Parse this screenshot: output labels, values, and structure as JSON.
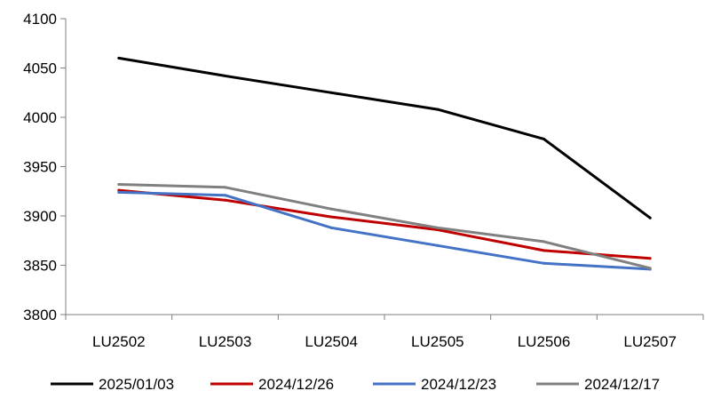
{
  "chart_data": {
    "type": "line",
    "title": "",
    "xlabel": "",
    "ylabel": "",
    "categories": [
      "LU2502",
      "LU2503",
      "LU2504",
      "LU2505",
      "LU2506",
      "LU2507"
    ],
    "ylim": [
      3800,
      4100
    ],
    "yticks": [
      "3800",
      "3850",
      "3900",
      "3950",
      "4000",
      "4050",
      "4100"
    ],
    "grid": false,
    "legend_position": "bottom",
    "series": [
      {
        "name": "2025/01/03",
        "color": "#000000",
        "values": [
          4060,
          4042,
          4025,
          4008,
          3978,
          3898
        ]
      },
      {
        "name": "2024/12/26",
        "color": "#c00000",
        "values": [
          3926,
          3916,
          3899,
          3886,
          3865,
          3857
        ]
      },
      {
        "name": "2024/12/23",
        "color": "#4472c4",
        "values": [
          3924,
          3921,
          3888,
          3870,
          3852,
          3846
        ]
      },
      {
        "name": "2024/12/17",
        "color": "#808080",
        "values": [
          3932,
          3929,
          3907,
          3888,
          3874,
          3847
        ]
      }
    ]
  }
}
